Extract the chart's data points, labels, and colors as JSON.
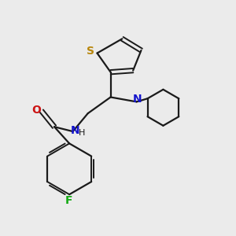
{
  "background_color": "#ebebeb",
  "bond_color": "#1a1a1a",
  "S_color": "#b8860b",
  "N_color": "#1414cc",
  "O_color": "#cc1414",
  "F_color": "#14aa14",
  "figsize": [
    3.0,
    3.0
  ],
  "dpi": 100,
  "xlim": [
    0,
    10
  ],
  "ylim": [
    0,
    10
  ]
}
